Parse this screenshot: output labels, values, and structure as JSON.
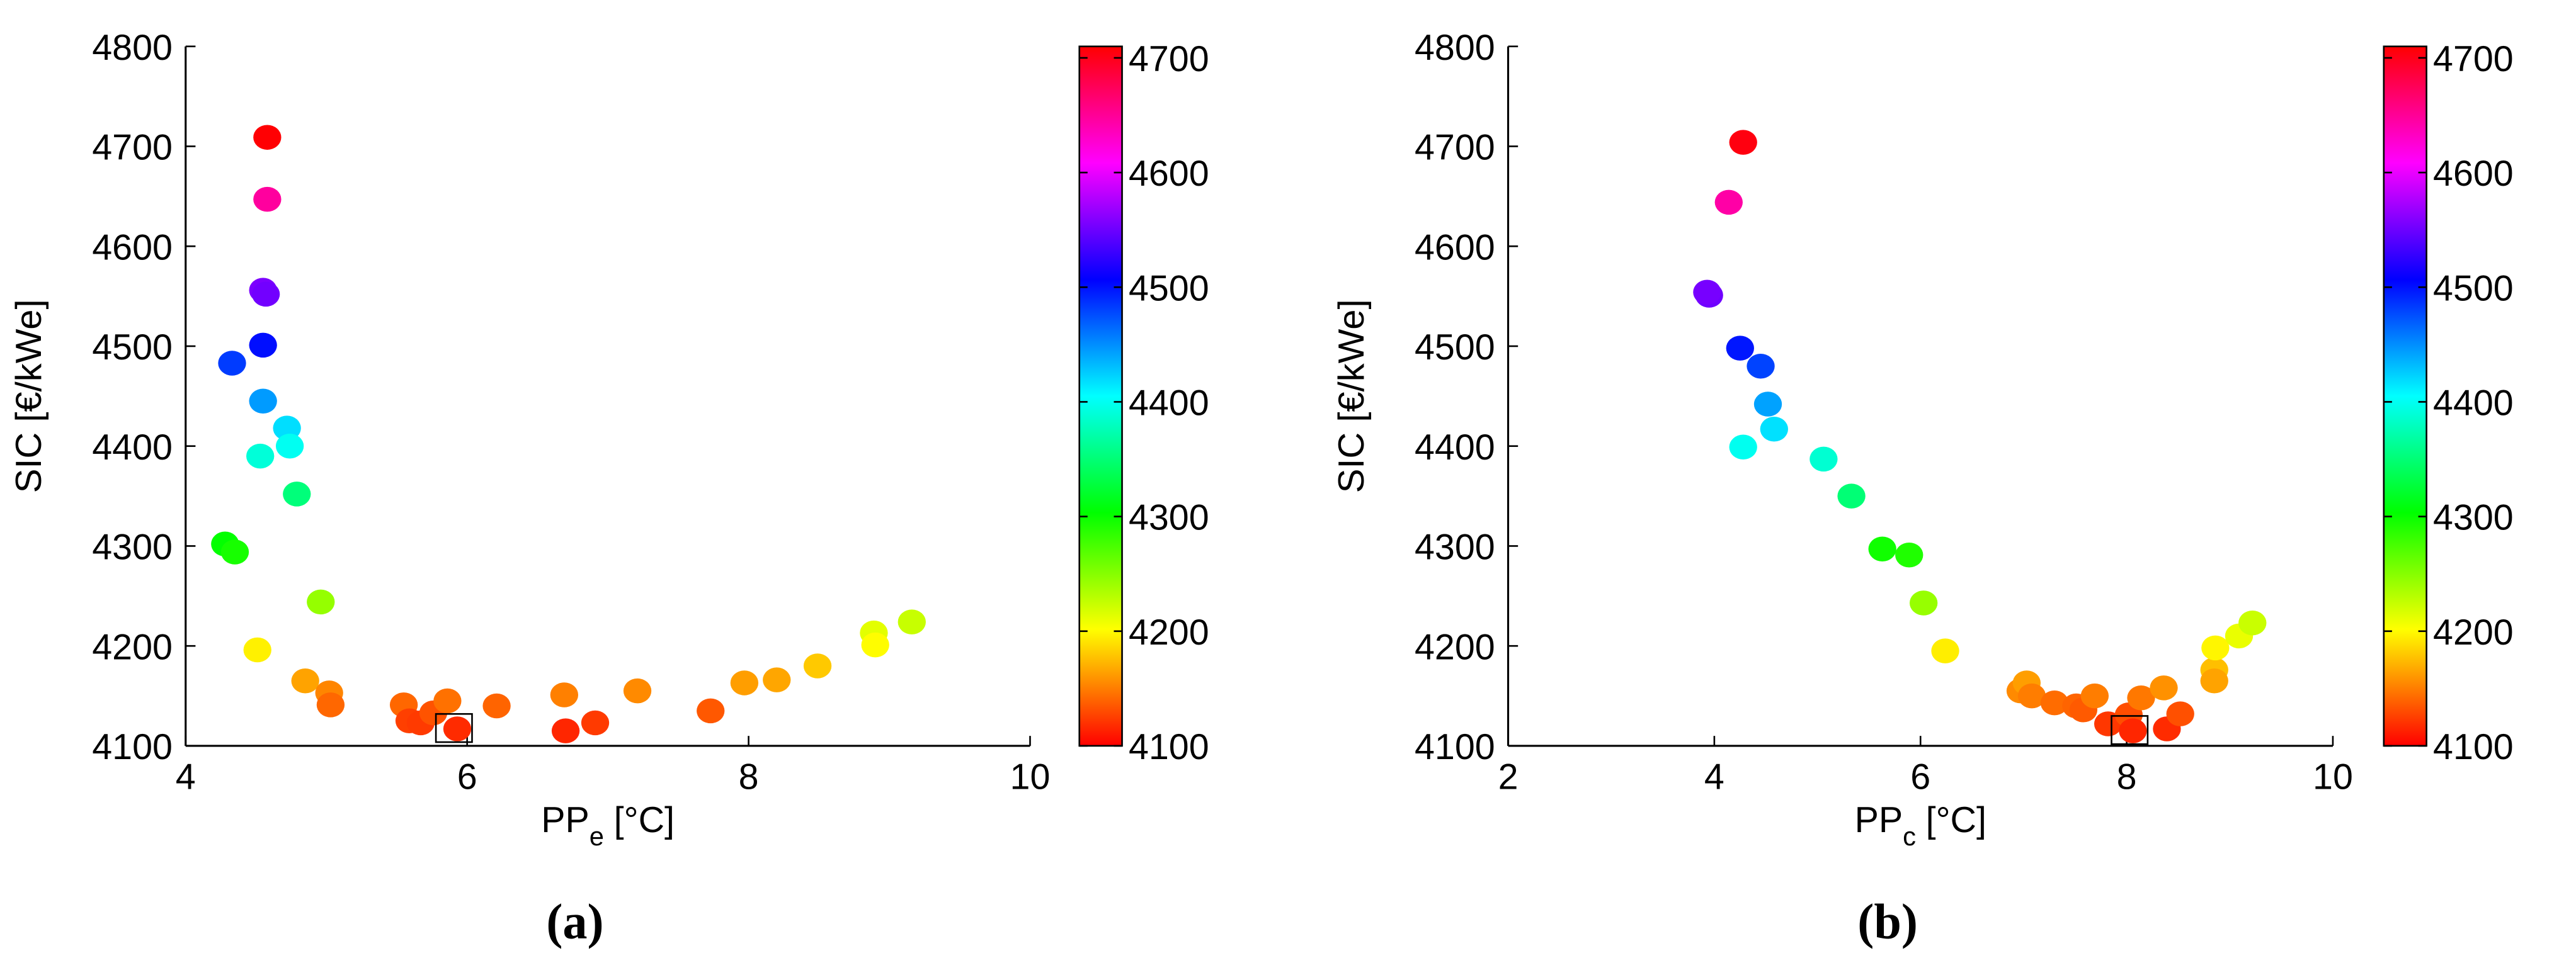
{
  "chart_data": [
    {
      "type": "scatter",
      "label": "(a)",
      "xlabel": {
        "main": "PP",
        "sub": "e",
        "unit": "[°C]"
      },
      "ylabel": "SIC [€/kWe]",
      "x": [
        4.58,
        4.58,
        4.55,
        4.57,
        4.33,
        4.55,
        4.55,
        4.72,
        4.53,
        4.74,
        4.79,
        4.28,
        4.35,
        4.96,
        4.51,
        4.85,
        5.02,
        5.03,
        5.55,
        5.59,
        5.67,
        5.76,
        5.86,
        5.93,
        6.21,
        6.69,
        6.7,
        6.91,
        7.21,
        7.73,
        7.97,
        8.2,
        8.49,
        8.89,
        8.9,
        9.16
      ],
      "values": [
        4709,
        4647,
        4556,
        4552,
        4483,
        4501,
        4445,
        4418,
        4390,
        4400,
        4352,
        4302,
        4294,
        4244,
        4196,
        4165,
        4153,
        4141,
        4141,
        4125,
        4123,
        4133,
        4145,
        4117,
        4140,
        4151,
        4115,
        4123,
        4155,
        4135,
        4163,
        4166,
        4180,
        4213,
        4201,
        4224
      ],
      "highlight": 23,
      "xlim": [
        4,
        10
      ],
      "xticks": [
        4,
        6,
        8,
        10
      ],
      "ylim": [
        4100,
        4800
      ],
      "yticks": [
        4100,
        4200,
        4300,
        4400,
        4500,
        4600,
        4700,
        4800
      ],
      "colormap": [
        "#ff0000",
        "#ffff00",
        "#00ff00",
        "#00ffff",
        "#0000ff",
        "#ff00ff",
        "#ff0000"
      ],
      "clim": [
        4100,
        4710
      ],
      "cticks": [
        4100,
        4200,
        4300,
        4400,
        4500,
        4600,
        4700
      ]
    },
    {
      "type": "scatter",
      "label": "(b)",
      "xlabel": {
        "main": "PP",
        "sub": "c",
        "unit": "[°C]"
      },
      "ylabel": "SIC [€/kWe]",
      "x": [
        4.28,
        4.14,
        3.95,
        3.93,
        4.25,
        4.45,
        4.52,
        4.58,
        4.28,
        5.06,
        5.33,
        5.63,
        5.89,
        6.03,
        6.24,
        6.97,
        7.03,
        7.08,
        7.3,
        7.51,
        7.58,
        7.69,
        7.82,
        8.02,
        8.06,
        8.14,
        8.36,
        8.39,
        8.52,
        8.85,
        8.85,
        8.86,
        9.09,
        9.22
      ],
      "values": [
        4704,
        4644,
        4551,
        4554,
        4498,
        4480,
        4442,
        4417,
        4399,
        4387,
        4350,
        4297,
        4291,
        4243,
        4195,
        4155,
        4163,
        4150,
        4143,
        4140,
        4136,
        4150,
        4122,
        4131,
        4115,
        4148,
        4158,
        4117,
        4132,
        4176,
        4165,
        4198,
        4210,
        4223
      ],
      "highlight": 24,
      "xlim": [
        2,
        10
      ],
      "xticks": [
        2,
        4,
        6,
        8,
        10
      ],
      "ylim": [
        4100,
        4800
      ],
      "yticks": [
        4100,
        4200,
        4300,
        4400,
        4500,
        4600,
        4700,
        4800
      ],
      "colormap": [
        "#ff0000",
        "#ffff00",
        "#00ff00",
        "#00ffff",
        "#0000ff",
        "#ff00ff",
        "#ff0000"
      ],
      "clim": [
        4100,
        4710
      ],
      "cticks": [
        4100,
        4200,
        4300,
        4400,
        4500,
        4600,
        4700
      ]
    }
  ]
}
